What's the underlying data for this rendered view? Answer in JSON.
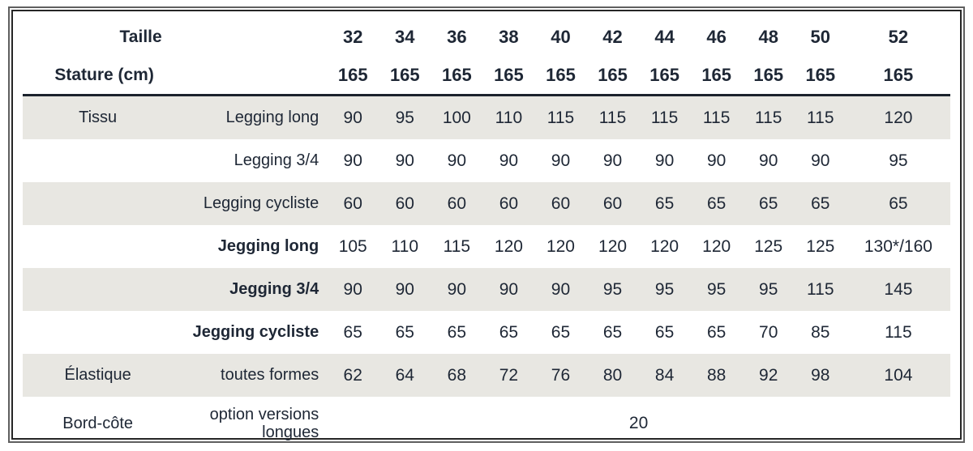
{
  "colors": {
    "text": "#1e2735",
    "row_shade": "#e8e7e2",
    "frame_outer_border": "#5f5f5f",
    "frame_inner_border": "#262626",
    "header_rule": "#1b222c"
  },
  "table": {
    "header": {
      "title": "Taille",
      "subtitle": "Stature (cm)",
      "sizes": [
        "32",
        "34",
        "36",
        "38",
        "40",
        "42",
        "44",
        "46",
        "48",
        "50",
        "52"
      ],
      "statures": [
        "165",
        "165",
        "165",
        "165",
        "165",
        "165",
        "165",
        "165",
        "165",
        "165",
        "165"
      ]
    },
    "rows": [
      {
        "group": "Tissu",
        "label": "Legging long",
        "values": [
          "90",
          "95",
          "100",
          "110",
          "115",
          "115",
          "115",
          "115",
          "115",
          "115",
          "120"
        ]
      },
      {
        "group": "",
        "label": "Legging 3/4",
        "values": [
          "90",
          "90",
          "90",
          "90",
          "90",
          "90",
          "90",
          "90",
          "90",
          "90",
          "95"
        ]
      },
      {
        "group": "",
        "label": "Legging cycliste",
        "values": [
          "60",
          "60",
          "60",
          "60",
          "60",
          "60",
          "65",
          "65",
          "65",
          "65",
          "65"
        ]
      },
      {
        "group": "",
        "label": "Jegging long",
        "values": [
          "105",
          "110",
          "115",
          "120",
          "120",
          "120",
          "120",
          "120",
          "125",
          "125",
          "130*/160"
        ]
      },
      {
        "group": "",
        "label": "Jegging 3/4",
        "values": [
          "90",
          "90",
          "90",
          "90",
          "90",
          "95",
          "95",
          "95",
          "95",
          "115",
          "145"
        ]
      },
      {
        "group": "",
        "label": "Jegging cycliste",
        "values": [
          "65",
          "65",
          "65",
          "65",
          "65",
          "65",
          "65",
          "65",
          "70",
          "85",
          "115"
        ]
      },
      {
        "group": "Élastique",
        "label": "toutes formes",
        "values": [
          "62",
          "64",
          "68",
          "72",
          "76",
          "80",
          "84",
          "88",
          "92",
          "98",
          "104"
        ]
      }
    ],
    "footer": {
      "group": "Bord-côte",
      "label": "option versions longues",
      "merged_value": "20"
    }
  }
}
